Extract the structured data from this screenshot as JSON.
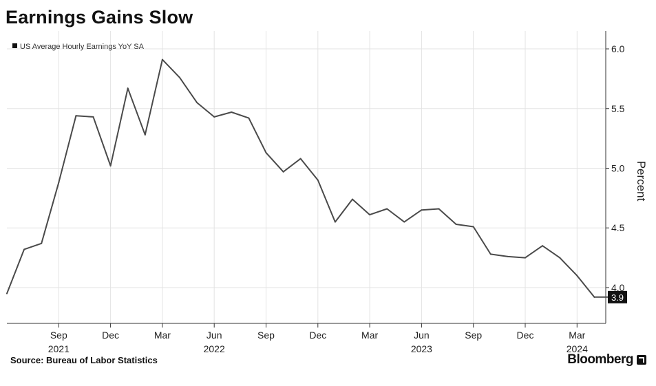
{
  "title": "Earnings Gains Slow",
  "source": "Source: Bureau of Labor Statistics",
  "brand": "Bloomberg",
  "chart_data": {
    "type": "line",
    "title": "Earnings Gains Slow",
    "ylabel": "Percent",
    "ylim": [
      3.7,
      6.15
    ],
    "yticks": [
      4.0,
      4.5,
      5.0,
      5.5,
      6.0
    ],
    "ytick_labels": [
      "4.0",
      "4.5",
      "5.0",
      "5.5",
      "6.0"
    ],
    "grid": true,
    "legend_position": "top-left",
    "last_value_label": "3.9",
    "x_ticks": [
      {
        "month": 8,
        "label": "Sep",
        "year_label": "2021"
      },
      {
        "month": 11,
        "label": "Dec",
        "year_label": ""
      },
      {
        "month": 14,
        "label": "Mar",
        "year_label": ""
      },
      {
        "month": 17,
        "label": "Jun",
        "year_label": "2022"
      },
      {
        "month": 20,
        "label": "Sep",
        "year_label": ""
      },
      {
        "month": 23,
        "label": "Dec",
        "year_label": ""
      },
      {
        "month": 26,
        "label": "Mar",
        "year_label": ""
      },
      {
        "month": 29,
        "label": "Jun",
        "year_label": "2023"
      },
      {
        "month": 32,
        "label": "Sep",
        "year_label": ""
      },
      {
        "month": 35,
        "label": "Dec",
        "year_label": ""
      },
      {
        "month": 38,
        "label": "Mar",
        "year_label": "2024"
      }
    ],
    "series": [
      {
        "name": "US Average Hourly Earnings YoY SA",
        "color": "#4a4a4a",
        "x": [
          "2021-05",
          "2021-06",
          "2021-07",
          "2021-08",
          "2021-09",
          "2021-10",
          "2021-11",
          "2021-12",
          "2022-01",
          "2022-02",
          "2022-03",
          "2022-04",
          "2022-05",
          "2022-06",
          "2022-07",
          "2022-08",
          "2022-09",
          "2022-10",
          "2022-11",
          "2022-12",
          "2023-01",
          "2023-02",
          "2023-03",
          "2023-04",
          "2023-05",
          "2023-06",
          "2023-07",
          "2023-08",
          "2023-09",
          "2023-10",
          "2023-11",
          "2023-12",
          "2024-01",
          "2024-02",
          "2024-03",
          "2024-04"
        ],
        "values": [
          3.95,
          4.32,
          4.37,
          4.88,
          5.44,
          5.43,
          5.02,
          5.67,
          5.28,
          5.91,
          5.76,
          5.55,
          5.43,
          5.47,
          5.42,
          5.13,
          4.97,
          5.08,
          4.9,
          4.55,
          4.74,
          4.61,
          4.66,
          4.55,
          4.65,
          4.66,
          4.53,
          4.51,
          4.28,
          4.26,
          4.25,
          4.35,
          4.25,
          4.1,
          3.92,
          3.92
        ]
      }
    ]
  }
}
